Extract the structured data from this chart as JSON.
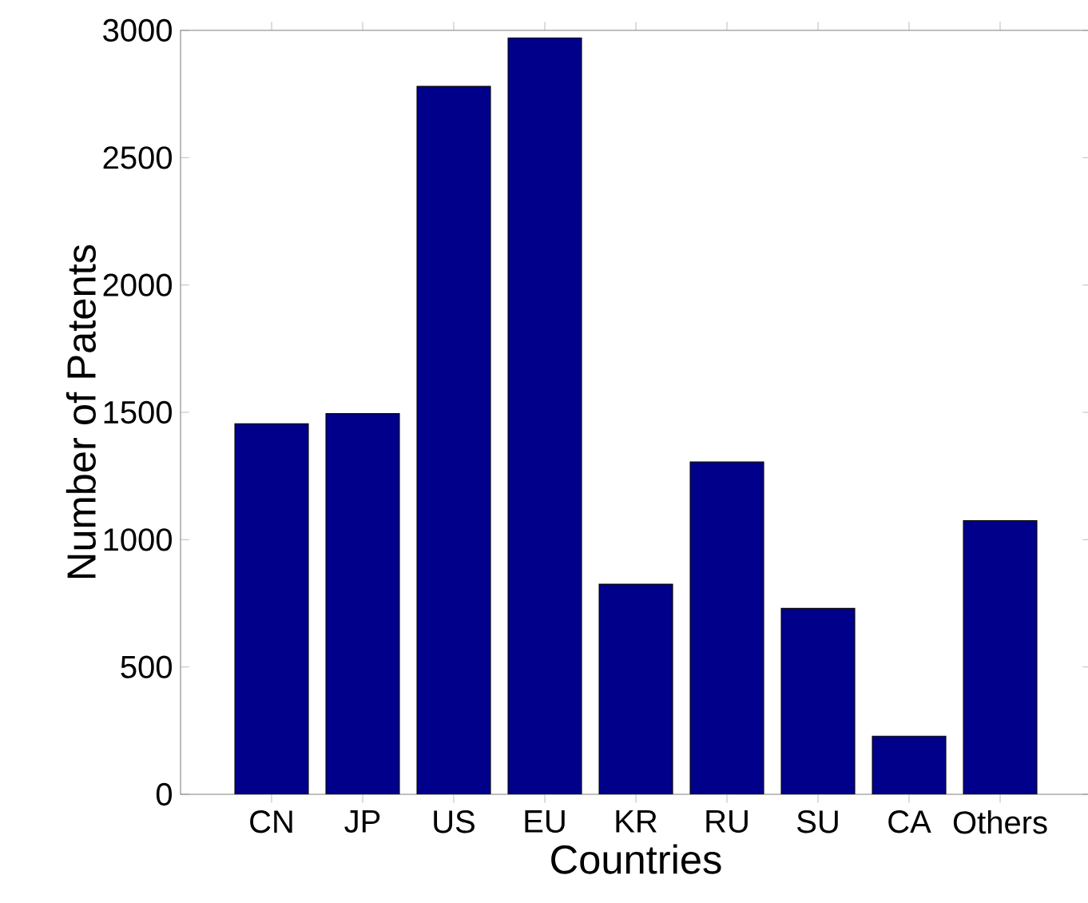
{
  "chart_data": {
    "type": "bar",
    "xlabel": "Countries",
    "ylabel": "Number of Patents",
    "categories": [
      "CN",
      "JP",
      "US",
      "EU",
      "KR",
      "RU",
      "SU",
      "CA",
      "Others"
    ],
    "values": [
      1455,
      1495,
      2780,
      2970,
      825,
      1305,
      730,
      228,
      1075
    ],
    "color": "#00008b",
    "ylim": [
      0,
      3000
    ],
    "yticks": [
      0,
      500,
      1000,
      1500,
      2000,
      2500,
      3000
    ],
    "grid": false
  }
}
